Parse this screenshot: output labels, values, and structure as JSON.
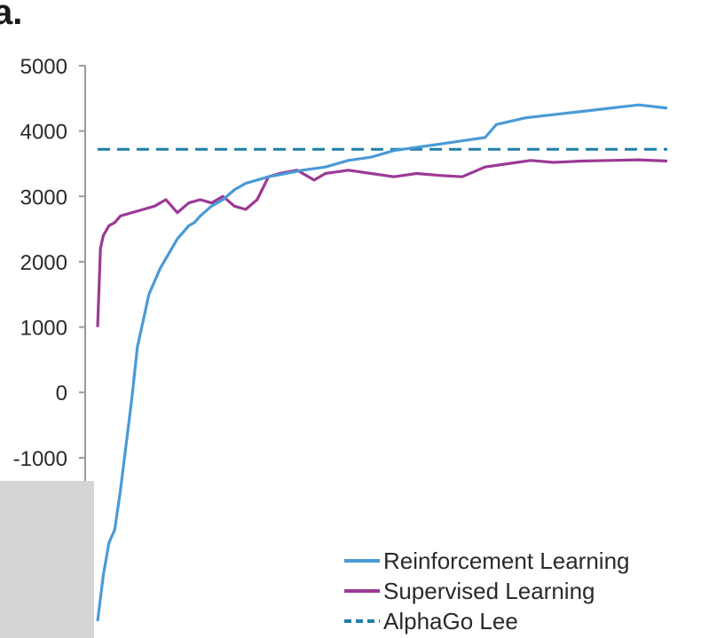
{
  "panel_label": "a.",
  "colors": {
    "reinforcement": "#4a9ad6",
    "supervised": "#9b3a94",
    "alphago_lee": "#1f7fa8",
    "axis": "#9a9a9a",
    "occluder": "#d5d5d3"
  },
  "chart_data": {
    "type": "line",
    "title": "",
    "xlabel": "",
    "ylabel": "",
    "ylim": [
      -3500,
      5000
    ],
    "yticks": [
      5000,
      4000,
      3000,
      2000,
      1000,
      0,
      -1000
    ],
    "ytick_labels": [
      "5000",
      "4000",
      "3000",
      "2000",
      "1000",
      "0",
      "-1000"
    ],
    "x_range": [
      0,
      100
    ],
    "legend": {
      "position": "bottom-right",
      "entries": [
        "Reinforcement Learning",
        "Supervised Learning",
        "AlphaGo Lee"
      ]
    },
    "series": [
      {
        "name": "Reinforcement Learning",
        "style": "solid",
        "x": [
          0,
          1,
          2,
          3,
          4,
          5,
          6,
          7,
          8,
          9,
          10,
          11,
          12,
          13,
          14,
          15,
          16,
          17,
          18,
          20,
          22,
          24,
          26,
          28,
          30,
          33,
          36,
          40,
          44,
          48,
          52,
          56,
          60,
          64,
          68,
          70,
          75,
          80,
          85,
          90,
          95,
          100
        ],
        "y": [
          -3500,
          -2800,
          -2300,
          -2100,
          -1500,
          -800,
          -100,
          700,
          1100,
          1500,
          1700,
          1900,
          2050,
          2200,
          2350,
          2450,
          2550,
          2600,
          2700,
          2850,
          2950,
          3100,
          3200,
          3250,
          3300,
          3350,
          3400,
          3450,
          3550,
          3600,
          3700,
          3750,
          3800,
          3850,
          3900,
          4100,
          4200,
          4250,
          4300,
          4350,
          4400,
          4350
        ]
      },
      {
        "name": "Supervised Learning",
        "style": "solid",
        "x": [
          0,
          0.5,
          1,
          2,
          3,
          4,
          6,
          8,
          10,
          12,
          14,
          16,
          18,
          20,
          22,
          24,
          26,
          28,
          30,
          32,
          35,
          38,
          40,
          44,
          48,
          52,
          56,
          60,
          64,
          68,
          72,
          76,
          80,
          85,
          90,
          95,
          100
        ],
        "y": [
          1000,
          2200,
          2400,
          2550,
          2600,
          2700,
          2750,
          2800,
          2850,
          2950,
          2750,
          2900,
          2950,
          2900,
          3000,
          2850,
          2800,
          2950,
          3300,
          3350,
          3400,
          3250,
          3350,
          3400,
          3350,
          3300,
          3350,
          3320,
          3300,
          3450,
          3500,
          3550,
          3520,
          3540,
          3550,
          3560,
          3540
        ]
      },
      {
        "name": "AlphaGo Lee",
        "style": "dashed",
        "x": [
          0,
          100
        ],
        "y": [
          3720,
          3720
        ]
      }
    ]
  }
}
